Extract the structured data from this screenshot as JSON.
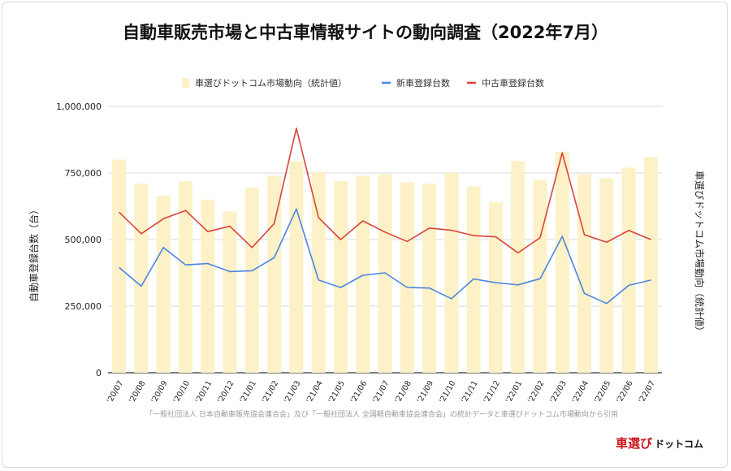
{
  "title": "自動車販売市場と中古車情報サイトの動向調査（2022年7月）",
  "source_note": "「一般社団法人 日本自動車販売協会連合会」及び「一般社団法人 全国軽自動車協会連合会」の統計データと車選びドットコム市場動向から引用",
  "logo": {
    "main": "車選び",
    "sub": "ドットコム"
  },
  "colors": {
    "bar": "#fcf1c7",
    "new_line": "#4a86e0",
    "used_line": "#d9443a",
    "grid": "#d9d9d9",
    "axis": "#333333"
  },
  "chart_data": {
    "type": "bar+line",
    "categories": [
      "'20/07",
      "'20/08",
      "'20/09",
      "'20/10",
      "'20/11",
      "'20/12",
      "'21/01",
      "'21/02",
      "'21/03",
      "'21/04",
      "'21/05",
      "'21/06",
      "'21/07",
      "'21/08",
      "'21/09",
      "'21/10",
      "'21/11",
      "'21/12",
      "'22/01",
      "'22/02",
      "'22/03",
      "'22/04",
      "'22/05",
      "'22/06",
      "'22/07"
    ],
    "ylabel_left": "自動車登録台数（台）",
    "ylabel_right": "車選びドットコム市場動向（統計値）",
    "ylim": [
      0,
      1000000
    ],
    "yticks": [
      "0",
      "250,000",
      "500,000",
      "750,000",
      "1,000,000"
    ],
    "yticks_values": [
      0,
      250000,
      500000,
      750000,
      1000000
    ],
    "grid": true,
    "legend_position": "top",
    "series": [
      {
        "name": "車選びドットコム市場動向（統計値）",
        "kind": "bar",
        "values": [
          800000,
          710000,
          665000,
          720000,
          650000,
          605000,
          695000,
          740000,
          795000,
          755000,
          720000,
          740000,
          745000,
          715000,
          710000,
          750000,
          700000,
          640000,
          795000,
          725000,
          830000,
          745000,
          730000,
          770000,
          810000
        ]
      },
      {
        "name": "新車登録台数",
        "kind": "line",
        "values": [
          395000,
          325000,
          470000,
          405000,
          410000,
          380000,
          383000,
          432000,
          615000,
          348000,
          320000,
          366000,
          375000,
          320000,
          318000,
          278000,
          352000,
          338000,
          330000,
          353000,
          512000,
          298000,
          260000,
          328000,
          348000
        ]
      },
      {
        "name": "中古車登録台数",
        "kind": "line",
        "values": [
          603000,
          522000,
          578000,
          609000,
          530000,
          550000,
          470000,
          560000,
          918000,
          582000,
          500000,
          570000,
          528000,
          493000,
          543000,
          535000,
          515000,
          510000,
          450000,
          507000,
          826000,
          518000,
          490000,
          534000,
          500000
        ]
      }
    ]
  }
}
